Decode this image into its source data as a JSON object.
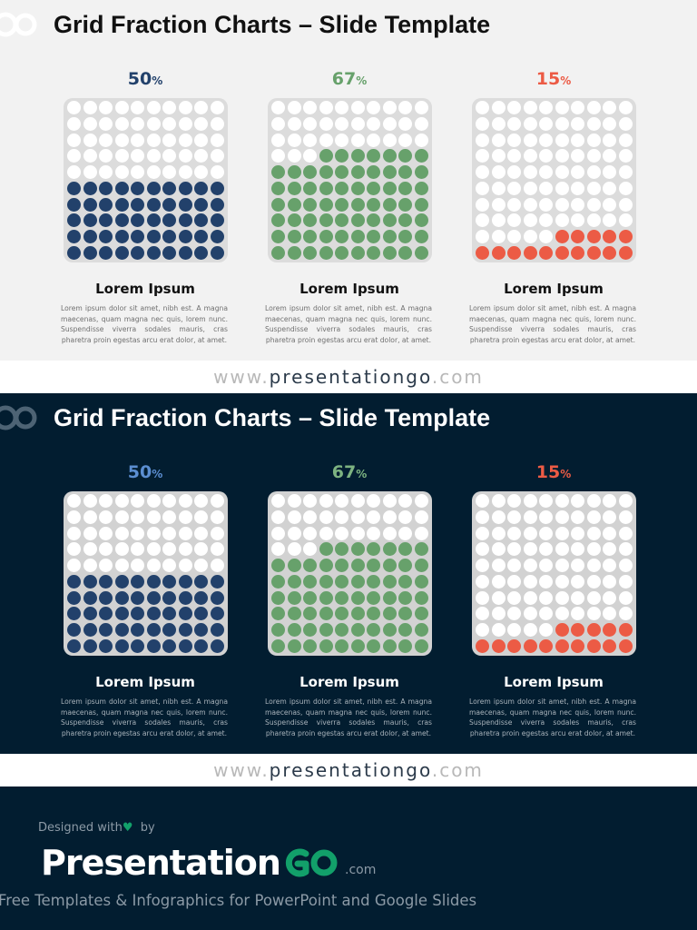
{
  "slides": [
    {
      "theme": "light",
      "title": "Grid Fraction Charts – Slide Template",
      "charts": [
        {
          "value": "50",
          "unit": "%",
          "color": "#22416b",
          "heading": "Lorem Ipsum",
          "text": "Lorem ipsum dolor sit amet, nibh est. A magna maecenas, quam magna nec quis, lorem nunc. Suspendisse viverra sodales mauris, cras pharetra proin egestas arcu erat dolor, at amet."
        },
        {
          "value": "67",
          "unit": "%",
          "color": "#67a16b",
          "heading": "Lorem Ipsum",
          "text": "Lorem ipsum dolor sit amet, nibh est. A magna maecenas, quam magna nec quis, lorem nunc. Suspendisse viverra sodales mauris, cras pharetra proin egestas arcu erat dolor, at amet."
        },
        {
          "value": "15",
          "unit": "%",
          "color": "#ec5b45",
          "heading": "Lorem Ipsum",
          "text": "Lorem ipsum dolor sit amet, nibh est. A magna maecenas, quam magna nec quis, lorem nunc. Suspendisse viverra sodales mauris, cras pharetra proin egestas arcu erat dolor, at amet."
        }
      ]
    },
    {
      "theme": "dark",
      "title": "Grid Fraction Charts – Slide Template",
      "charts": [
        {
          "value": "50",
          "unit": "%",
          "color": "#5b8ed1",
          "fill_color": "#22416b",
          "heading": "Lorem Ipsum",
          "text": "Lorem ipsum dolor sit amet, nibh est. A magna maecenas, quam magna nec quis, lorem nunc. Suspendisse viverra sodales mauris, cras pharetra proin egestas arcu erat dolor, at amet."
        },
        {
          "value": "67",
          "unit": "%",
          "color": "#7db381",
          "fill_color": "#67a16b",
          "heading": "Lorem Ipsum",
          "text": "Lorem ipsum dolor sit amet, nibh est. A magna maecenas, quam magna nec quis, lorem nunc. Suspendisse viverra sodales mauris, cras pharetra proin egestas arcu erat dolor, at amet."
        },
        {
          "value": "15",
          "unit": "%",
          "color": "#ec5b45",
          "fill_color": "#ec5b45",
          "heading": "Lorem Ipsum",
          "text": "Lorem ipsum dolor sit amet, nibh est. A magna maecenas, quam magna nec quis, lorem nunc. Suspendisse viverra sodales mauris, cras pharetra proin egestas arcu erat dolor, at amet."
        }
      ]
    }
  ],
  "site": {
    "prefix": "www.",
    "main": "presentationgo",
    "suffix": ".com"
  },
  "footer": {
    "designed_prefix": "Designed with",
    "designed_suffix": "by",
    "heart_icon": "heart-icon",
    "brand_text": "Presentation",
    "brand_go": "GO",
    "brand_com": ".com",
    "brand_go_color": "#12a06a",
    "tagline": "Free Templates & Infographics for PowerPoint and Google Slides"
  },
  "chart_data": [
    {
      "type": "waffle",
      "grid": [
        10,
        10
      ],
      "categories": [
        "50%",
        "67%",
        "15%"
      ],
      "values": [
        50,
        67,
        15
      ],
      "unit": "%"
    },
    {
      "type": "waffle",
      "grid": [
        10,
        10
      ],
      "categories": [
        "50%",
        "67%",
        "15%"
      ],
      "values": [
        50,
        67,
        15
      ],
      "unit": "%"
    }
  ]
}
